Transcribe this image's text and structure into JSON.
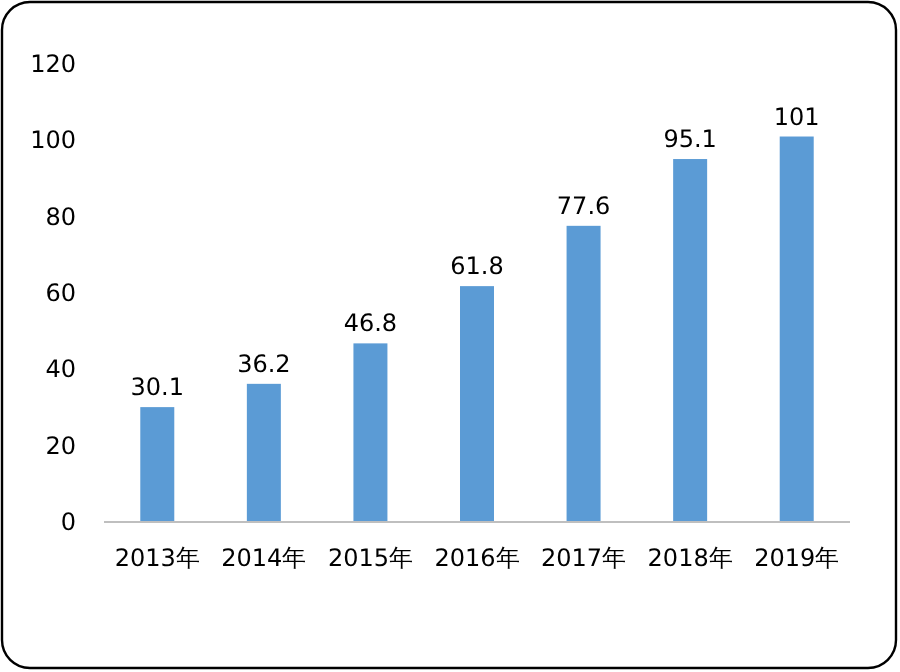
{
  "chart_data": {
    "type": "bar",
    "categories": [
      "2013年",
      "2014年",
      "2015年",
      "2016年",
      "2017年",
      "2018年",
      "2019年"
    ],
    "values": [
      30.1,
      36.2,
      46.8,
      61.8,
      77.6,
      95.1,
      101
    ],
    "color": "#5b9bd5",
    "ylim": [
      0,
      120
    ],
    "yticks": [
      0,
      20,
      40,
      60,
      80,
      100,
      120
    ],
    "data_labels": true
  }
}
